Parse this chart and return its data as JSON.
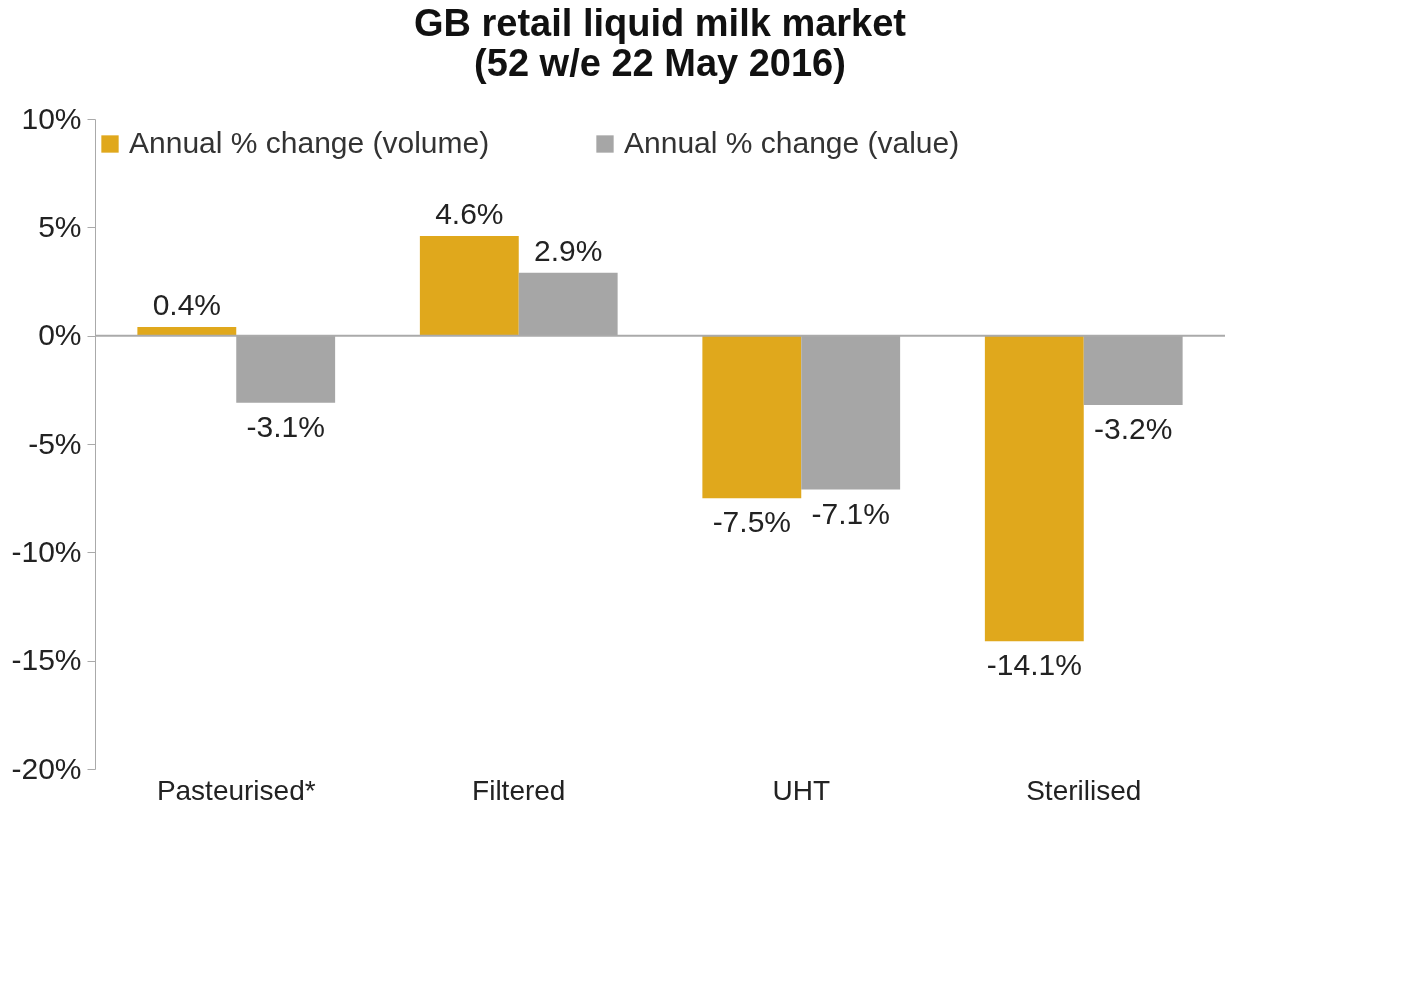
{
  "chart_data": {
    "type": "bar",
    "title": "GB retail liquid milk market\n(52 w/e 22 May 2016)",
    "categories": [
      "Pasteurised*",
      "Filtered",
      "UHT",
      "Sterilised"
    ],
    "series": [
      {
        "name": "Annual % change (volume)",
        "color": "#e0a81c",
        "values": [
          0.4,
          4.6,
          -7.5,
          -14.1
        ],
        "value_labels": [
          "0.4%",
          "4.6%",
          "-7.5%",
          "-14.1%"
        ]
      },
      {
        "name": "Annual % change (value)",
        "color": "#a6a6a6",
        "values": [
          -3.1,
          2.9,
          -7.1,
          -3.2
        ],
        "value_labels": [
          "-3.1%",
          "2.9%",
          "-7.1%",
          "-3.2%"
        ]
      }
    ],
    "ylim": [
      -20,
      10
    ],
    "yticks": [
      {
        "value": -20,
        "label": "-20%"
      },
      {
        "value": -15,
        "label": "-15%"
      },
      {
        "value": -10,
        "label": "-10%"
      },
      {
        "value": -5,
        "label": "-5%"
      },
      {
        "value": 0,
        "label": "0%"
      },
      {
        "value": 5,
        "label": "5%"
      },
      {
        "value": 10,
        "label": "10%"
      }
    ],
    "ref_lines": [
      {
        "axis": "y",
        "value": 0,
        "color": "#aaaaaa"
      }
    ],
    "legend": "top",
    "grid": false
  }
}
